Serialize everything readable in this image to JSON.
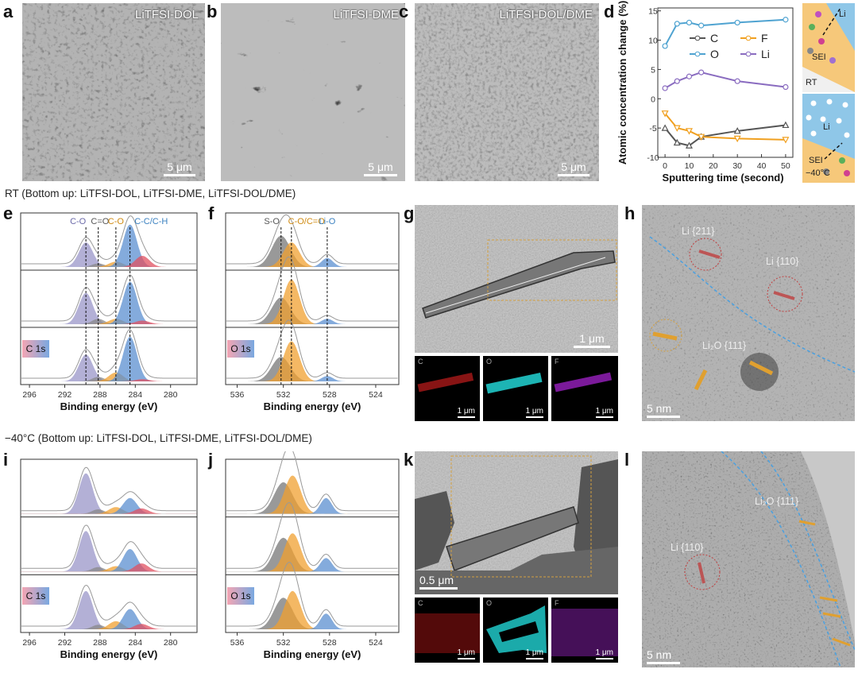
{
  "panels": {
    "a": {
      "letter": "a",
      "label": "LiTFSI-DOL",
      "scale": "5 μm"
    },
    "b": {
      "letter": "b",
      "label": "LiTFSI-DME",
      "scale": "5 μm"
    },
    "c": {
      "letter": "c",
      "label": "LiTFSI-DOL/DME",
      "scale": "5 μm"
    },
    "d": {
      "letter": "d"
    },
    "e": {
      "letter": "e",
      "badge": "C 1s"
    },
    "f": {
      "letter": "f",
      "badge": "O 1s"
    },
    "g": {
      "letter": "g",
      "scale": "1 μm",
      "eds": [
        "C",
        "O",
        "F"
      ],
      "eds_scale": "1 μm"
    },
    "h": {
      "letter": "h",
      "labels": [
        "Li {211}",
        "Li {110}",
        "Li₂O {111}"
      ],
      "scale": "5 nm"
    },
    "i": {
      "letter": "i",
      "badge": "C 1s"
    },
    "j": {
      "letter": "j",
      "badge": "O 1s"
    },
    "k": {
      "letter": "k",
      "scale": "0.5 μm",
      "eds": [
        "C",
        "O",
        "F"
      ],
      "eds_scale": "1 μm"
    },
    "l": {
      "letter": "l",
      "labels": [
        "Li₂O {111}",
        "Li {110}"
      ],
      "scale": "5 nm"
    }
  },
  "headers": {
    "rt": "RT (Bottom up: LiTFSI-DOL, LiTFSI-DME, LiTFSI-DOL/DME)",
    "cold": "−40°C  (Bottom up: LiTFSI-DOL, LiTFSI-DME, LiTFSI-DOL/DME)"
  },
  "xps_c_peaks": [
    "C-O",
    "C=O",
    "C-O",
    "C-C/C-H"
  ],
  "xps_o_peaks": [
    "S-O",
    "C-O/C=O",
    "Li-O"
  ],
  "schematic": {
    "rt_li": "Li",
    "rt_sei": "SEI",
    "rt_label": "RT",
    "cold_li": "Li",
    "cold_sei": "SEI",
    "cold_label": "−40°C"
  },
  "colors": {
    "C": "#555555",
    "O": "#4fa3d1",
    "F": "#f0a020",
    "Li": "#8a6cc0",
    "blue_peak": "#5b8fd0",
    "orange_peak": "#f0a030",
    "purple_peak": "#9a96c8",
    "red_peak": "#e05060"
  },
  "chart_data": [
    {
      "type": "line",
      "id": "d",
      "xlabel": "Sputtering time (second)",
      "ylabel": "Atomic concentration change (%)",
      "xlim": [
        -3,
        53
      ],
      "ylim": [
        -10,
        15.5
      ],
      "xticks": [
        0,
        10,
        20,
        30,
        40,
        50
      ],
      "yticks": [
        -10,
        -5,
        0,
        5,
        10,
        15
      ],
      "x": [
        0,
        5,
        10,
        15,
        30,
        50
      ],
      "series": [
        {
          "name": "C",
          "values": [
            -5.0,
            -7.5,
            -8.0,
            -6.5,
            -5.5,
            -4.5
          ],
          "color": "#555555",
          "marker": "triangle"
        },
        {
          "name": "F",
          "values": [
            -2.5,
            -5.0,
            -5.5,
            -6.5,
            -6.8,
            -7.0
          ],
          "color": "#f0a020",
          "marker": "triangle-down"
        },
        {
          "name": "O",
          "values": [
            9.0,
            12.8,
            13.0,
            12.5,
            13.0,
            13.5
          ],
          "color": "#4fa3d1",
          "marker": "circle"
        },
        {
          "name": "Li",
          "values": [
            1.8,
            3.0,
            3.8,
            4.5,
            3.0,
            2.0
          ],
          "color": "#8a6cc0",
          "marker": "circle"
        }
      ],
      "legend": "top"
    },
    {
      "type": "line",
      "id": "xps-c-rt",
      "xlabel": "Binding energy (eV)",
      "xticks": [
        296,
        292,
        288,
        284,
        280
      ],
      "xlim": [
        297,
        277
      ]
    },
    {
      "type": "line",
      "id": "xps-o-rt",
      "xlabel": "Binding energy (eV)",
      "xticks": [
        536,
        532,
        528,
        524
      ],
      "xlim": [
        537,
        522
      ]
    }
  ]
}
